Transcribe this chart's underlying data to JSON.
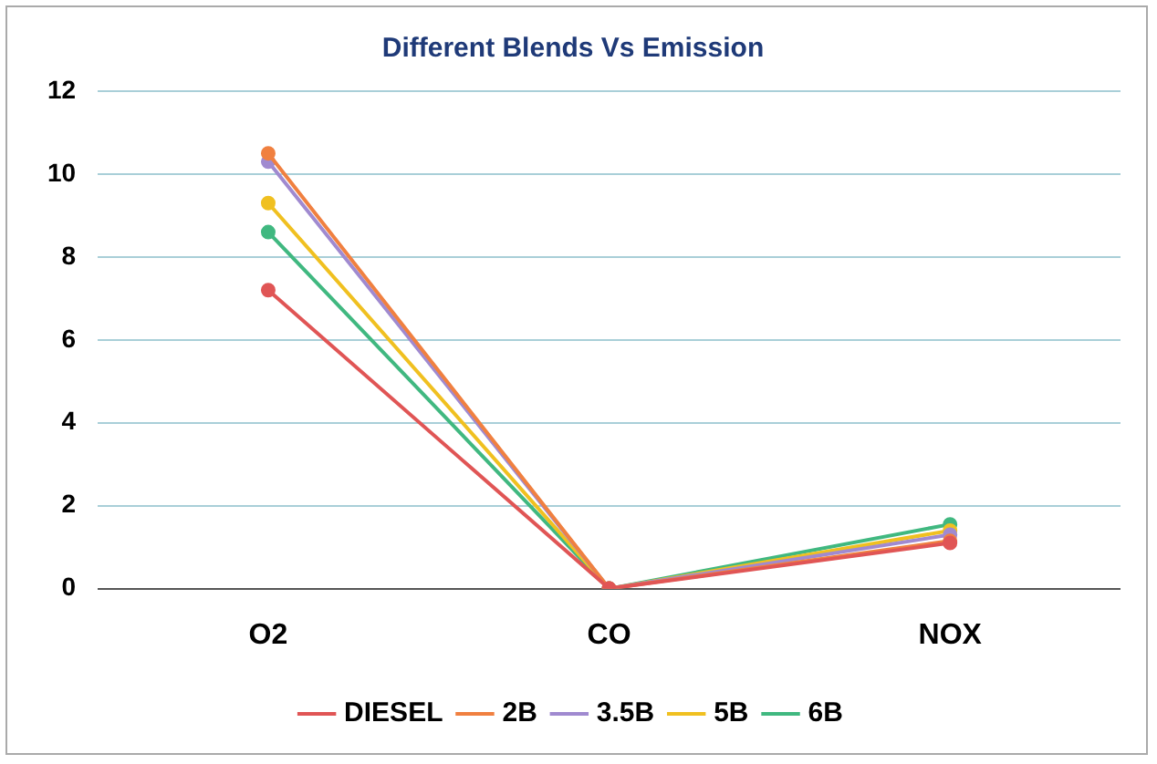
{
  "chart_data": {
    "type": "line",
    "title": "Different Blends Vs Emission",
    "categories": [
      "O2",
      "CO",
      "NOX"
    ],
    "series": [
      {
        "name": "DIESEL",
        "color": "#e05555",
        "values": [
          7.2,
          0,
          1.1
        ]
      },
      {
        "name": "2B",
        "color": "#f08040",
        "values": [
          10.5,
          0,
          1.15
        ]
      },
      {
        "name": "3.5B",
        "color": "#a08ad0",
        "values": [
          10.3,
          0,
          1.3
        ]
      },
      {
        "name": "5B",
        "color": "#f0c020",
        "values": [
          9.3,
          0,
          1.4
        ]
      },
      {
        "name": "6B",
        "color": "#40b880",
        "values": [
          8.6,
          0,
          1.55
        ]
      }
    ],
    "ylim": [
      0,
      12
    ],
    "yticks": [
      0,
      2,
      4,
      6,
      8,
      10,
      12
    ],
    "grid": "y",
    "legend": "bottom",
    "marker": "circle",
    "line_style": "solid"
  }
}
